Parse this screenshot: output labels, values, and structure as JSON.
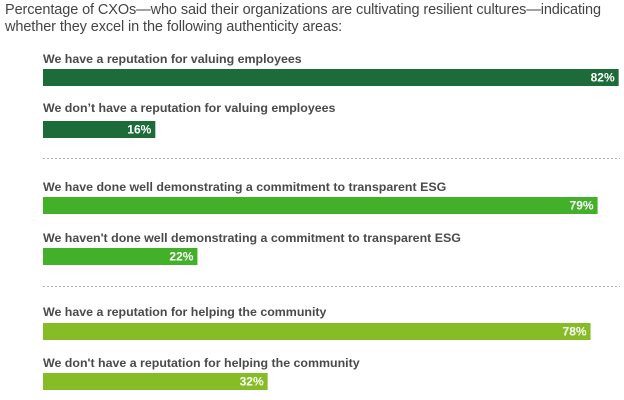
{
  "chart_data": {
    "type": "bar",
    "orientation": "horizontal",
    "title": "Percentage of CXOs—who said their organizations are cultivating resilient cultures—indicating whether they excel in the following authenticity areas:",
    "xlim": [
      0,
      100
    ],
    "unit": "%",
    "grid": false,
    "categories": [
      "We have a reputation for valuing employees",
      "We don’t have a reputation for valuing employees",
      "We have done well demonstrating a commitment to transparent ESG",
      "We haven't done well demonstrating a commitment to transparent ESG",
      "We have a reputation for helping the community",
      "We don't have a reputation for helping the community"
    ],
    "values": [
      82,
      16,
      79,
      22,
      78,
      32
    ],
    "value_labels": [
      "82%",
      "16%",
      "79%",
      "22%",
      "78%",
      "32%"
    ],
    "groups": [
      {
        "categories": [
          0,
          1
        ],
        "color": "#1e6b3a"
      },
      {
        "categories": [
          2,
          3
        ],
        "color": "#43b02a"
      },
      {
        "categories": [
          4,
          5
        ],
        "color": "#86bc25"
      }
    ]
  }
}
